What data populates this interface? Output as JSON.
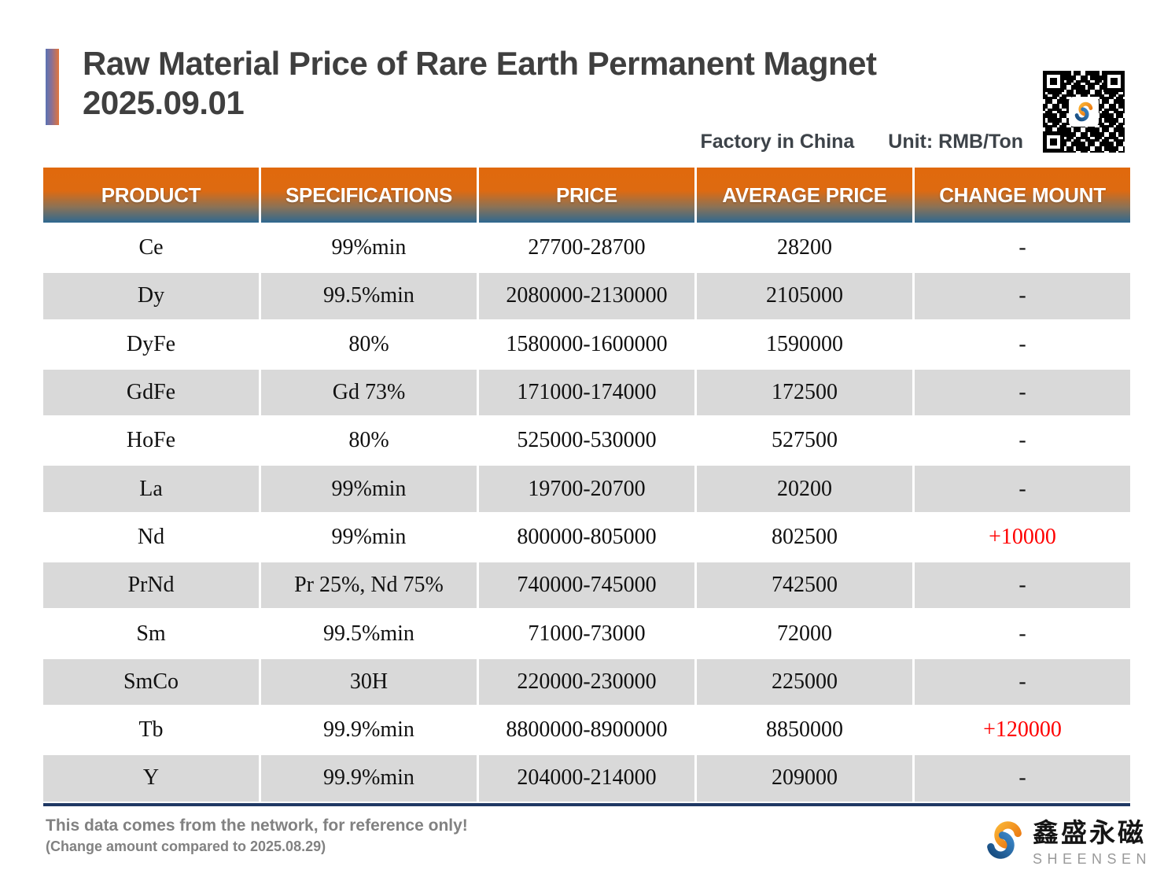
{
  "header": {
    "title_line1": "Raw Material Price of Rare Earth Permanent Magnet",
    "title_line2": "2025.09.01",
    "factory_label": "Factory in China",
    "unit_label": "Unit: RMB/Ton"
  },
  "table": {
    "columns": [
      "PRODUCT",
      "SPECIFICATIONS",
      "PRICE",
      "AVERAGE PRICE",
      "CHANGE MOUNT"
    ],
    "rows": [
      {
        "product": "Ce",
        "spec": "99%min",
        "price": "27700-28700",
        "avg": "28200",
        "change": "-"
      },
      {
        "product": "Dy",
        "spec": "99.5%min",
        "price": "2080000-2130000",
        "avg": "2105000",
        "change": "-"
      },
      {
        "product": "DyFe",
        "spec": "80%",
        "price": "1580000-1600000",
        "avg": "1590000",
        "change": "-"
      },
      {
        "product": "GdFe",
        "spec": "Gd 73%",
        "price": "171000-174000",
        "avg": "172500",
        "change": "-"
      },
      {
        "product": "HoFe",
        "spec": "80%",
        "price": "525000-530000",
        "avg": "527500",
        "change": "-"
      },
      {
        "product": "La",
        "spec": "99%min",
        "price": "19700-20700",
        "avg": "20200",
        "change": "-"
      },
      {
        "product": "Nd",
        "spec": "99%min",
        "price": "800000-805000",
        "avg": "802500",
        "change": "+10000"
      },
      {
        "product": "PrNd",
        "spec": "Pr 25%, Nd 75%",
        "price": "740000-745000",
        "avg": "742500",
        "change": "-"
      },
      {
        "product": "Sm",
        "spec": "99.5%min",
        "price": "71000-73000",
        "avg": "72000",
        "change": "-"
      },
      {
        "product": "SmCo",
        "spec": "30H",
        "price": "220000-230000",
        "avg": "225000",
        "change": "-"
      },
      {
        "product": "Tb",
        "spec": "99.9%min",
        "price": "8800000-8900000",
        "avg": "8850000",
        "change": "+120000"
      },
      {
        "product": "Y",
        "spec": "99.9%min",
        "price": "204000-214000",
        "avg": "209000",
        "change": "-"
      }
    ]
  },
  "footer": {
    "note_line1": "This data comes from the network, for reference only!",
    "note_line2": "(Change amount compared to 2025.08.29)",
    "brand_cn": "鑫盛永磁",
    "brand_en": "SHEENSEN"
  },
  "colors": {
    "change_positive": "#ff0000",
    "header_gradient_top": "#e0690c",
    "header_gradient_bottom": "#2e6890",
    "row_shade": "#d9d9d9",
    "bottom_rule": "#1f3864"
  }
}
